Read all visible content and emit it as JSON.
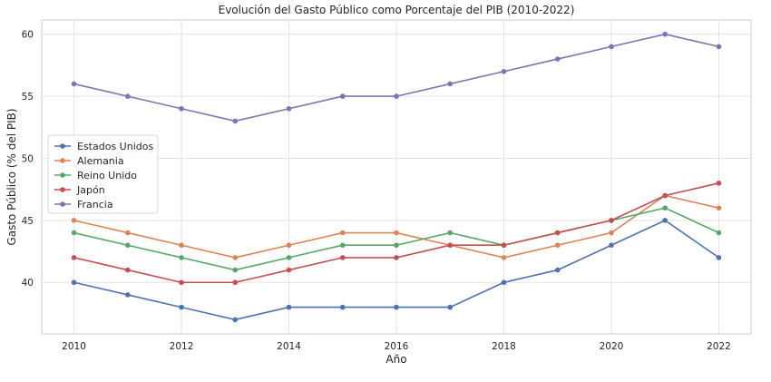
{
  "chart_data": {
    "type": "line",
    "title": "Evolución del Gasto Público como Porcentaje del PIB (2010-2022)",
    "xlabel": "Año",
    "ylabel": "Gasto Público (% del PIB)",
    "x": [
      2010,
      2011,
      2012,
      2013,
      2014,
      2015,
      2016,
      2017,
      2018,
      2019,
      2020,
      2021,
      2022
    ],
    "xticks": [
      2010,
      2012,
      2014,
      2016,
      2018,
      2020,
      2022
    ],
    "yticks": [
      40,
      45,
      50,
      55,
      60
    ],
    "xlim": [
      2009.4,
      2022.6
    ],
    "ylim": [
      35.85,
      61.15
    ],
    "grid": true,
    "legend_position": "center-left",
    "series": [
      {
        "name": "Estados Unidos",
        "color": "#4c72b0",
        "values": [
          40,
          39,
          38,
          37,
          38,
          38,
          38,
          38,
          40,
          41,
          43,
          45,
          42
        ]
      },
      {
        "name": "Alemania",
        "color": "#dd8452",
        "values": [
          45,
          44,
          43,
          42,
          43,
          44,
          44,
          43,
          42,
          43,
          44,
          47,
          46
        ]
      },
      {
        "name": "Reino Unido",
        "color": "#55a868",
        "values": [
          44,
          43,
          42,
          41,
          42,
          43,
          43,
          44,
          43,
          44,
          45,
          46,
          44
        ]
      },
      {
        "name": "Japón",
        "color": "#c44e52",
        "values": [
          42,
          41,
          40,
          40,
          41,
          42,
          42,
          43,
          43,
          44,
          45,
          47,
          48
        ]
      },
      {
        "name": "Francia",
        "color": "#8172b3",
        "values": [
          56,
          55,
          54,
          53,
          54,
          55,
          55,
          56,
          57,
          58,
          59,
          60,
          59
        ]
      }
    ]
  }
}
